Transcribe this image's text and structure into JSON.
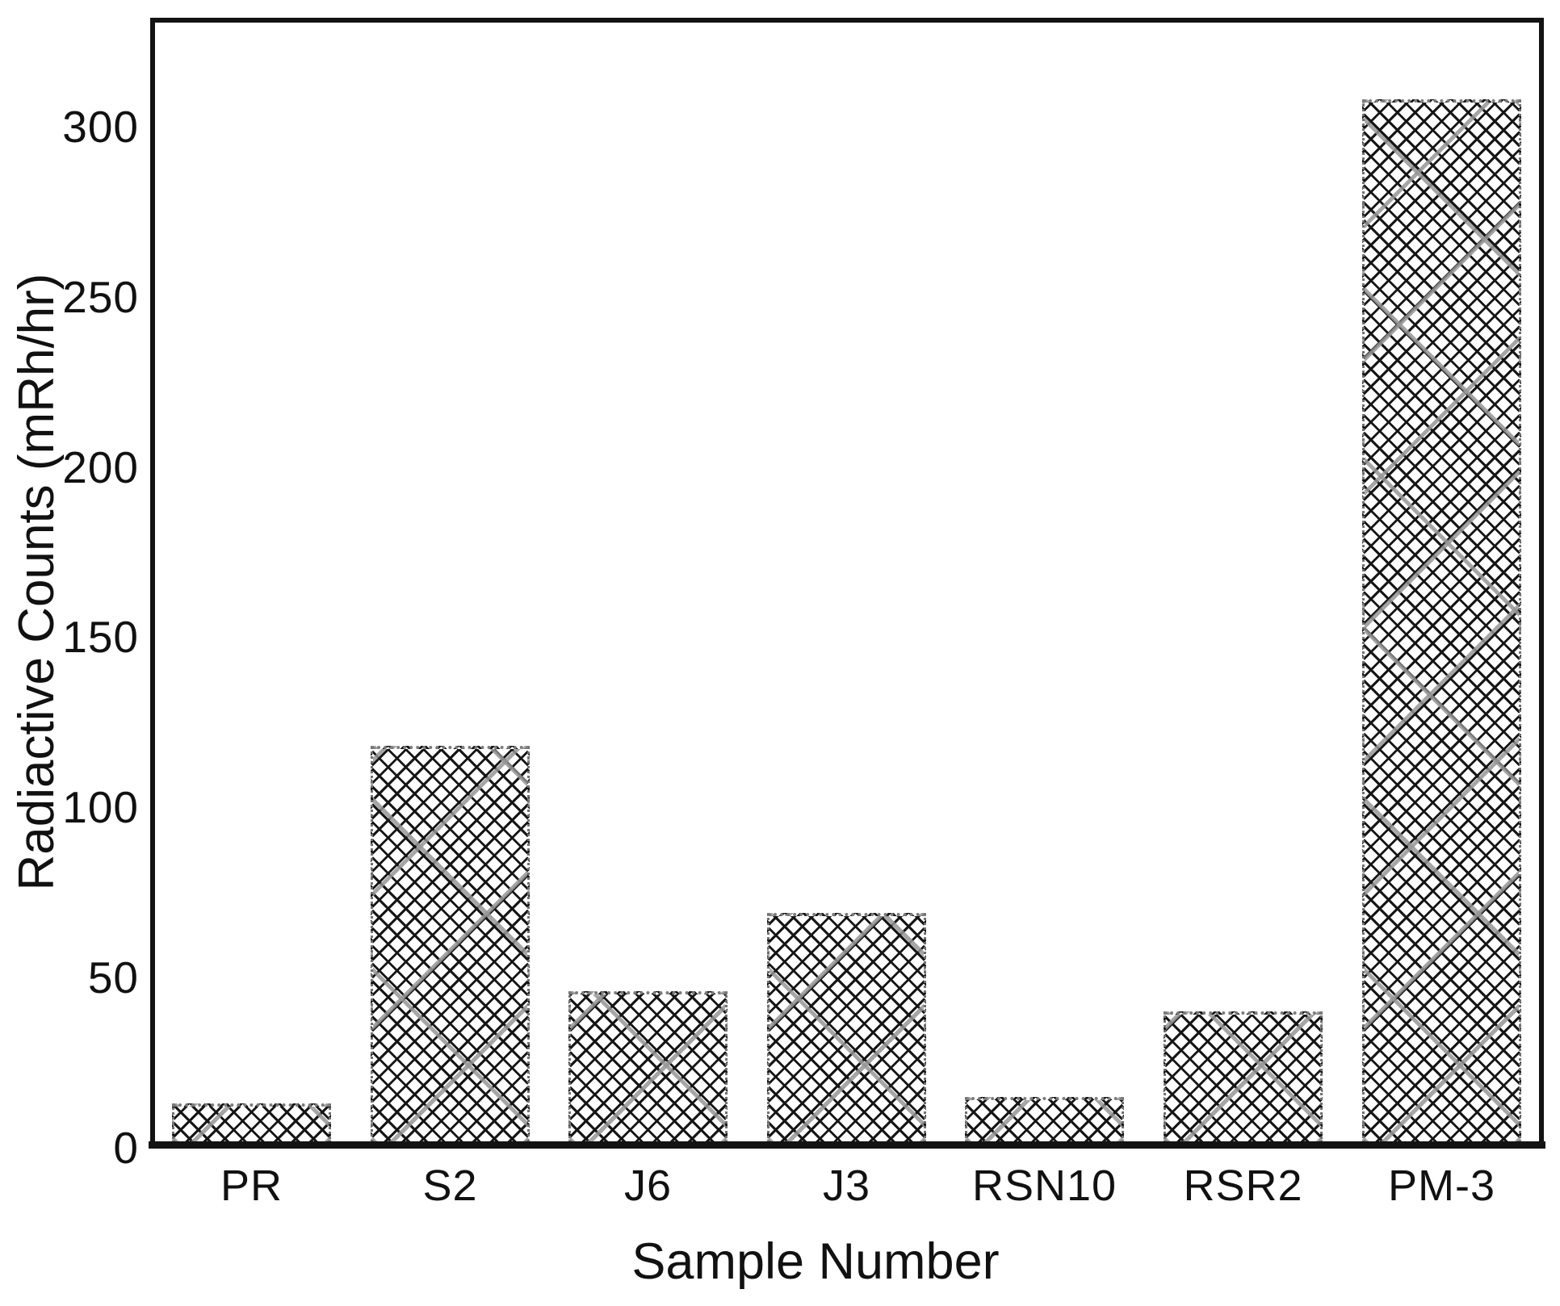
{
  "chart_data": {
    "type": "bar",
    "title": "",
    "xlabel": "Sample Number",
    "ylabel": "Radiactive Counts (mRh/hr)",
    "categories": [
      "PR",
      "S2",
      "J6",
      "J3",
      "RSN10",
      "RSR2",
      "PM-3"
    ],
    "values": [
      13,
      118,
      46,
      69,
      15,
      40,
      308
    ],
    "yticks": [
      0,
      50,
      100,
      150,
      200,
      250,
      300
    ],
    "ylim": [
      0,
      332
    ],
    "grid": false,
    "legend": null,
    "bar_pattern": "diamond-crosshatch",
    "bar_line_color": "#161616",
    "artifact_streak_color": "#969696",
    "frame_color": "#131313",
    "background_color": "#ffffff",
    "text_color": "#111111"
  }
}
